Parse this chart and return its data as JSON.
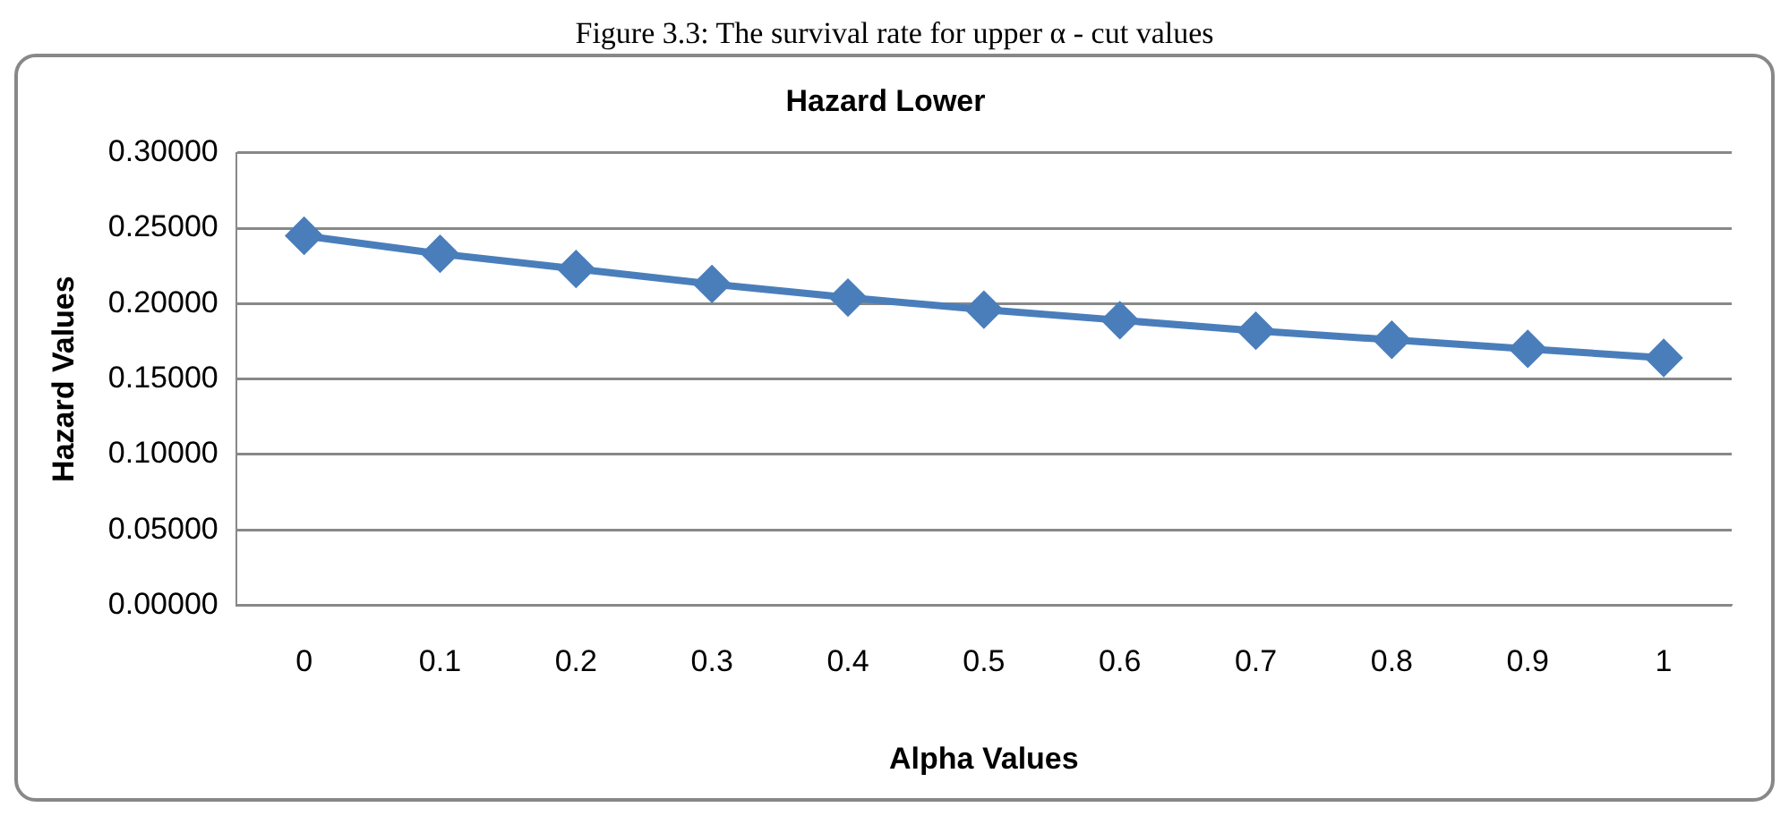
{
  "chart_data": {
    "type": "line",
    "title": "Hazard Lower",
    "xlabel": "Alpha Values",
    "ylabel": "Hazard Values",
    "annotations": [
      "Figure 3.3: The survival rate for upper α - cut values"
    ],
    "categories": [
      "0",
      "0.1",
      "0.2",
      "0.3",
      "0.4",
      "0.5",
      "0.6",
      "0.7",
      "0.8",
      "0.9",
      "1"
    ],
    "series": [
      {
        "color": "#4a7ebb",
        "values": [
          0.245,
          0.233,
          0.223,
          0.213,
          0.204,
          0.196,
          0.189,
          0.182,
          0.176,
          0.17,
          0.164
        ]
      }
    ],
    "ylim": [
      0,
      0.3
    ],
    "yticks": [
      {
        "value": 0,
        "label": "0.00000"
      },
      {
        "value": 0.05,
        "label": "0.05000"
      },
      {
        "value": 0.1,
        "label": "0.10000"
      },
      {
        "value": 0.15,
        "label": "0.15000"
      },
      {
        "value": 0.2,
        "label": "0.20000"
      },
      {
        "value": 0.25,
        "label": "0.25000"
      },
      {
        "value": 0.3,
        "label": "0.30000"
      }
    ],
    "grid": "y",
    "legend": false,
    "marker": "diamond",
    "line_style": "solid"
  }
}
